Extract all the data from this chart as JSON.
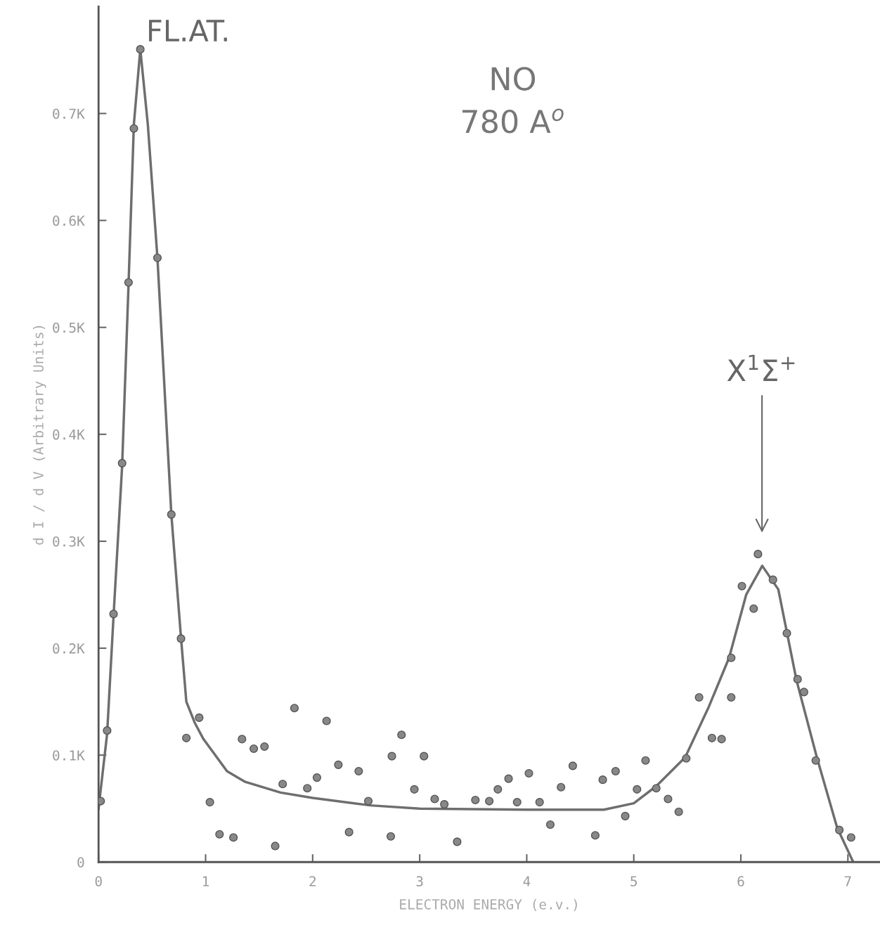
{
  "chart_data": {
    "type": "scatter",
    "xlabel": "ELECTRON ENERGY (e.v.)",
    "ylabel": "d I / d V (Arbitrary Units)",
    "xlim": [
      0,
      7.3
    ],
    "ylim": [
      0,
      0.8
    ],
    "xticks": [
      0,
      1,
      2,
      3,
      4,
      5,
      6,
      7
    ],
    "yticks": [
      0,
      {
        "value": 0.1,
        "label": "0.1K"
      },
      {
        "value": 0.2,
        "label": "0.2K"
      },
      {
        "value": 0.3,
        "label": "0.3K"
      },
      {
        "value": 0.4,
        "label": "0.4K"
      },
      {
        "value": 0.5,
        "label": "0.5K"
      },
      {
        "value": 0.6,
        "label": "0.6K"
      },
      {
        "value": 0.7,
        "label": "0.7K"
      }
    ],
    "grid": false,
    "marker": "circle",
    "series": [
      {
        "type": "scatter",
        "color": "#888888",
        "x": [
          0.02,
          0.08,
          0.14,
          0.22,
          0.28,
          0.33,
          0.39,
          0.55,
          0.68,
          0.77,
          0.82,
          0.94,
          1.04,
          1.13,
          1.26,
          1.34,
          1.45,
          1.55,
          1.65,
          1.72,
          1.83,
          1.95,
          2.04,
          2.13,
          2.24,
          2.34,
          2.43,
          2.52,
          2.73,
          2.74,
          2.83,
          2.95,
          3.04,
          3.14,
          3.23,
          3.35,
          3.52,
          3.65,
          3.73,
          3.83,
          3.91,
          4.02,
          4.12,
          4.22,
          4.32,
          4.43,
          4.64,
          4.71,
          4.83,
          4.92,
          5.03,
          5.11,
          5.21,
          5.32,
          5.42,
          5.49,
          5.61,
          5.73,
          5.82,
          5.91,
          5.91,
          6.01,
          6.12,
          6.16,
          6.3,
          6.43,
          6.53,
          6.59,
          6.7,
          6.92,
          7.03
        ],
        "values": [
          0.057,
          0.123,
          0.232,
          0.373,
          0.542,
          0.686,
          0.76,
          0.565,
          0.325,
          0.209,
          0.116,
          0.135,
          0.056,
          0.026,
          0.023,
          0.115,
          0.106,
          0.108,
          0.015,
          0.073,
          0.144,
          0.069,
          0.079,
          0.132,
          0.091,
          0.028,
          0.085,
          0.057,
          0.024,
          0.099,
          0.119,
          0.068,
          0.099,
          0.059,
          0.054,
          0.019,
          0.058,
          0.057,
          0.068,
          0.078,
          0.056,
          0.083,
          0.056,
          0.035,
          0.07,
          0.09,
          0.025,
          0.077,
          0.085,
          0.043,
          0.068,
          0.095,
          0.069,
          0.059,
          0.047,
          0.097,
          0.154,
          0.116,
          0.115,
          0.154,
          0.191,
          0.258,
          0.237,
          0.288,
          0.264,
          0.214,
          0.171,
          0.159,
          0.095,
          0.03,
          0.023
        ]
      },
      {
        "type": "line",
        "color": "#6e6e6e",
        "marker": "none",
        "line_style": "solid",
        "x": [
          0,
          0.08,
          0.14,
          0.22,
          0.28,
          0.33,
          0.39,
          0.46,
          0.55,
          0.68,
          0.77,
          0.82,
          0.9,
          0.98,
          1.2,
          1.37,
          1.7,
          2.0,
          2.54,
          3.0,
          4.0,
          4.72,
          5.0,
          5.21,
          5.48,
          5.7,
          5.89,
          6.05,
          6.2,
          6.35,
          6.52,
          6.71,
          6.9,
          7.05
        ],
        "values": [
          0.05,
          0.12,
          0.23,
          0.37,
          0.54,
          0.69,
          0.76,
          0.69,
          0.565,
          0.325,
          0.21,
          0.15,
          0.13,
          0.115,
          0.085,
          0.075,
          0.065,
          0.06,
          0.053,
          0.05,
          0.049,
          0.049,
          0.055,
          0.071,
          0.098,
          0.145,
          0.191,
          0.25,
          0.277,
          0.255,
          0.17,
          0.098,
          0.032,
          0.0
        ]
      }
    ],
    "annotations": [
      {
        "text": "FL.AT.",
        "x": 0.39,
        "y": 0.76
      },
      "NO",
      "780 A$^{o}$",
      "X$^{1}$Σ$^{+}$"
    ]
  }
}
